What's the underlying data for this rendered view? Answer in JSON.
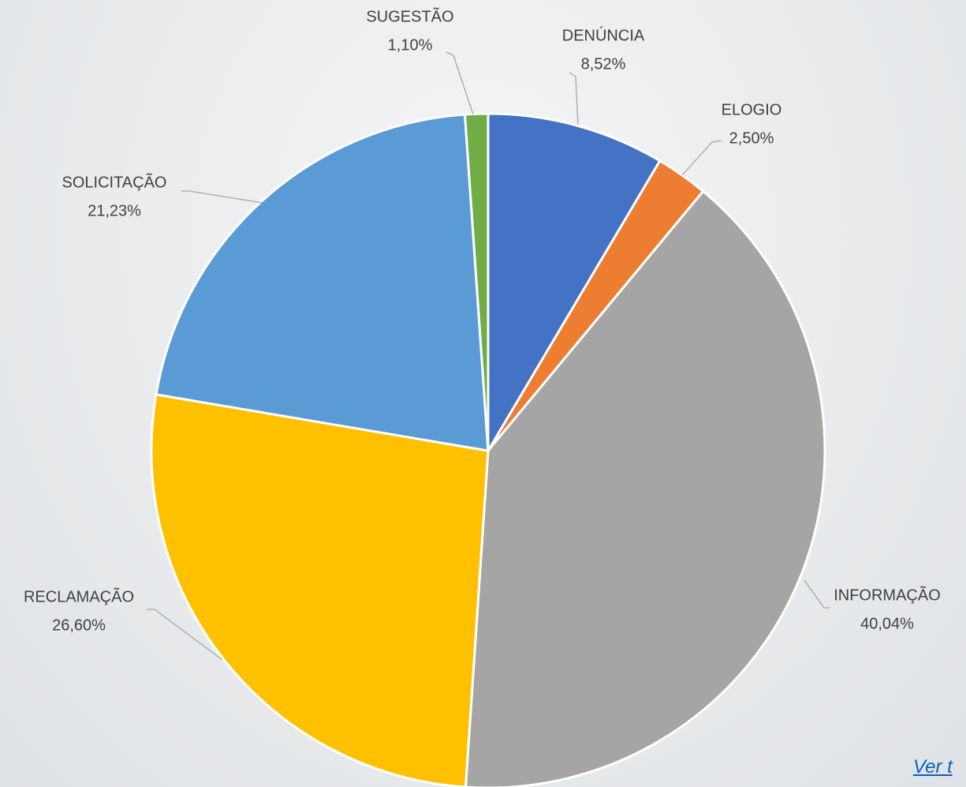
{
  "chart_data": {
    "type": "pie",
    "categories": [
      "DENÚNCIA",
      "ELOGIO",
      "INFORMAÇÃO",
      "RECLAMAÇÃO",
      "SOLICITAÇÃO",
      "SUGESTÃO"
    ],
    "values": [
      8.52,
      2.5,
      40.04,
      26.6,
      21.23,
      1.1
    ],
    "value_labels": [
      "8,52%",
      "2,50%",
      "40,04%",
      "26,60%",
      "21,23%",
      "1,10%"
    ],
    "colors": [
      "#4472c4",
      "#ed7d31",
      "#a5a5a5",
      "#ffc000",
      "#5b9bd5",
      "#70ad47"
    ]
  },
  "link": "Ver t"
}
